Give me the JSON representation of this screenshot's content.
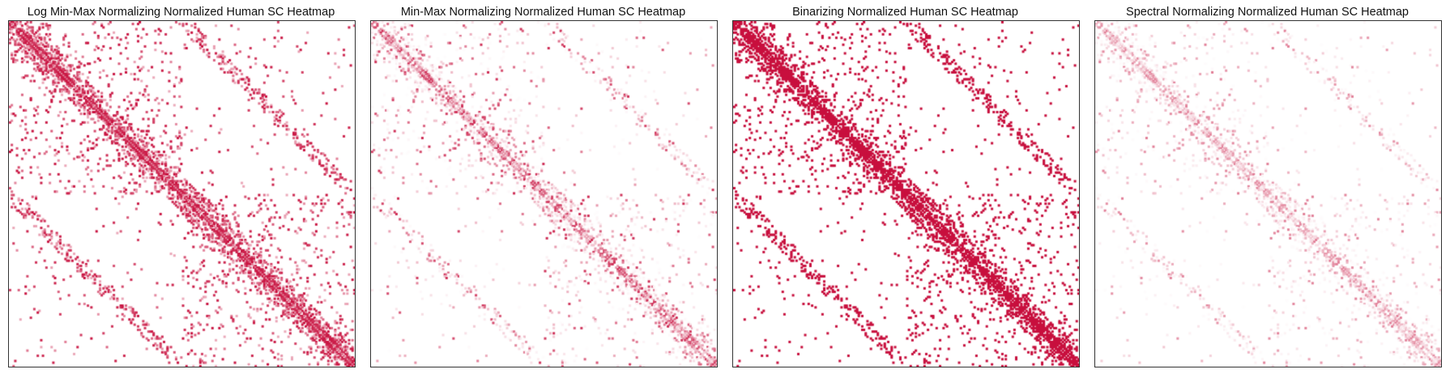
{
  "chart_data": [
    {
      "type": "heatmap",
      "title": "Log Min-Max Normalizing Normalized Human SC Heatmap",
      "normalization": "log-minmax",
      "matrix_size": 200,
      "colormap": [
        "#ffffff",
        "#c8103e"
      ],
      "value_range": [
        0,
        1
      ],
      "grid": false,
      "axis_ticks": false
    },
    {
      "type": "heatmap",
      "title": "Min-Max Normalizing Normalized Human SC Heatmap",
      "normalization": "minmax",
      "matrix_size": 200,
      "colormap": [
        "#ffffff",
        "#c8103e"
      ],
      "value_range": [
        0,
        1
      ],
      "grid": false,
      "axis_ticks": false
    },
    {
      "type": "heatmap",
      "title": "Binarizing Normalized Human SC Heatmap",
      "normalization": "binary",
      "matrix_size": 200,
      "colormap": [
        "#ffffff",
        "#c8103e"
      ],
      "value_range": [
        0,
        1
      ],
      "grid": false,
      "axis_ticks": false
    },
    {
      "type": "heatmap",
      "title": "Spectral Normalizing Normalized Human SC Heatmap",
      "normalization": "spectral",
      "matrix_size": 200,
      "colormap": [
        "#ffffff",
        "#c8103e"
      ],
      "value_range": [
        0,
        1
      ],
      "grid": false,
      "axis_ticks": false
    }
  ]
}
